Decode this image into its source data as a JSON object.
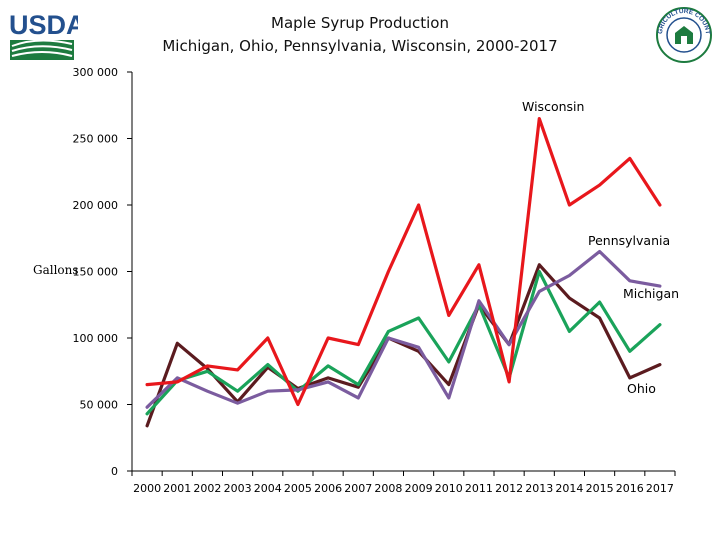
{
  "header": {
    "title_line1": "Maple Syrup Production",
    "title_line2": "Michigan, Ohio, Pennsylvania, Wisconsin, 2000-2017",
    "logo_left_text": "USDA",
    "logo_right_text": "AGRICULTURE COUNTS"
  },
  "colors": {
    "wisconsin": "#e8171c",
    "pennsylvania": "#7b5c9f",
    "michigan": "#1aa35a",
    "ohio": "#5b1b1f",
    "usda_green": "#1d7b3f",
    "usda_blue": "#23508e"
  },
  "chart_data": {
    "type": "line",
    "title": "Maple Syrup Production Michigan, Ohio, Pennsylvania, Wisconsin, 2000-2017",
    "xlabel": "",
    "ylabel": "Gallons",
    "ylim": [
      0,
      300000
    ],
    "yticks": [
      0,
      50000,
      100000,
      150000,
      200000,
      250000,
      300000
    ],
    "ytick_labels": [
      "0",
      "50 000",
      "100 000",
      "150 000",
      "200 000",
      "250 000",
      "300 000"
    ],
    "categories": [
      "2000",
      "2001",
      "2002",
      "2003",
      "2004",
      "2005",
      "2006",
      "2007",
      "2008",
      "2009",
      "2010",
      "2011",
      "2012",
      "2013",
      "2014",
      "2015",
      "2016",
      "2017"
    ],
    "grid": false,
    "legend": "inline labels",
    "series": [
      {
        "key": "wisconsin",
        "name": "Wisconsin",
        "values": [
          65000,
          67000,
          79000,
          76000,
          100000,
          50000,
          100000,
          95000,
          150000,
          200000,
          117000,
          155000,
          67000,
          265000,
          200000,
          215000,
          235000,
          200000
        ]
      },
      {
        "key": "pennsylvania",
        "name": "Pennsylvania",
        "values": [
          48000,
          70000,
          60000,
          51000,
          60000,
          61000,
          67000,
          55000,
          100000,
          93000,
          55000,
          128000,
          95000,
          135000,
          147000,
          165000,
          143000,
          139000
        ]
      },
      {
        "key": "michigan",
        "name": "Michigan",
        "values": [
          43000,
          68000,
          75000,
          60000,
          80000,
          60000,
          79000,
          65000,
          105000,
          115000,
          82000,
          125000,
          70000,
          150000,
          105000,
          127000,
          90000,
          110000
        ]
      },
      {
        "key": "ohio",
        "name": "Ohio",
        "values": [
          34000,
          96000,
          77000,
          52000,
          78000,
          62000,
          70000,
          63000,
          100000,
          90000,
          65000,
          125000,
          95000,
          155000,
          130000,
          115000,
          70000,
          80000
        ]
      }
    ]
  }
}
